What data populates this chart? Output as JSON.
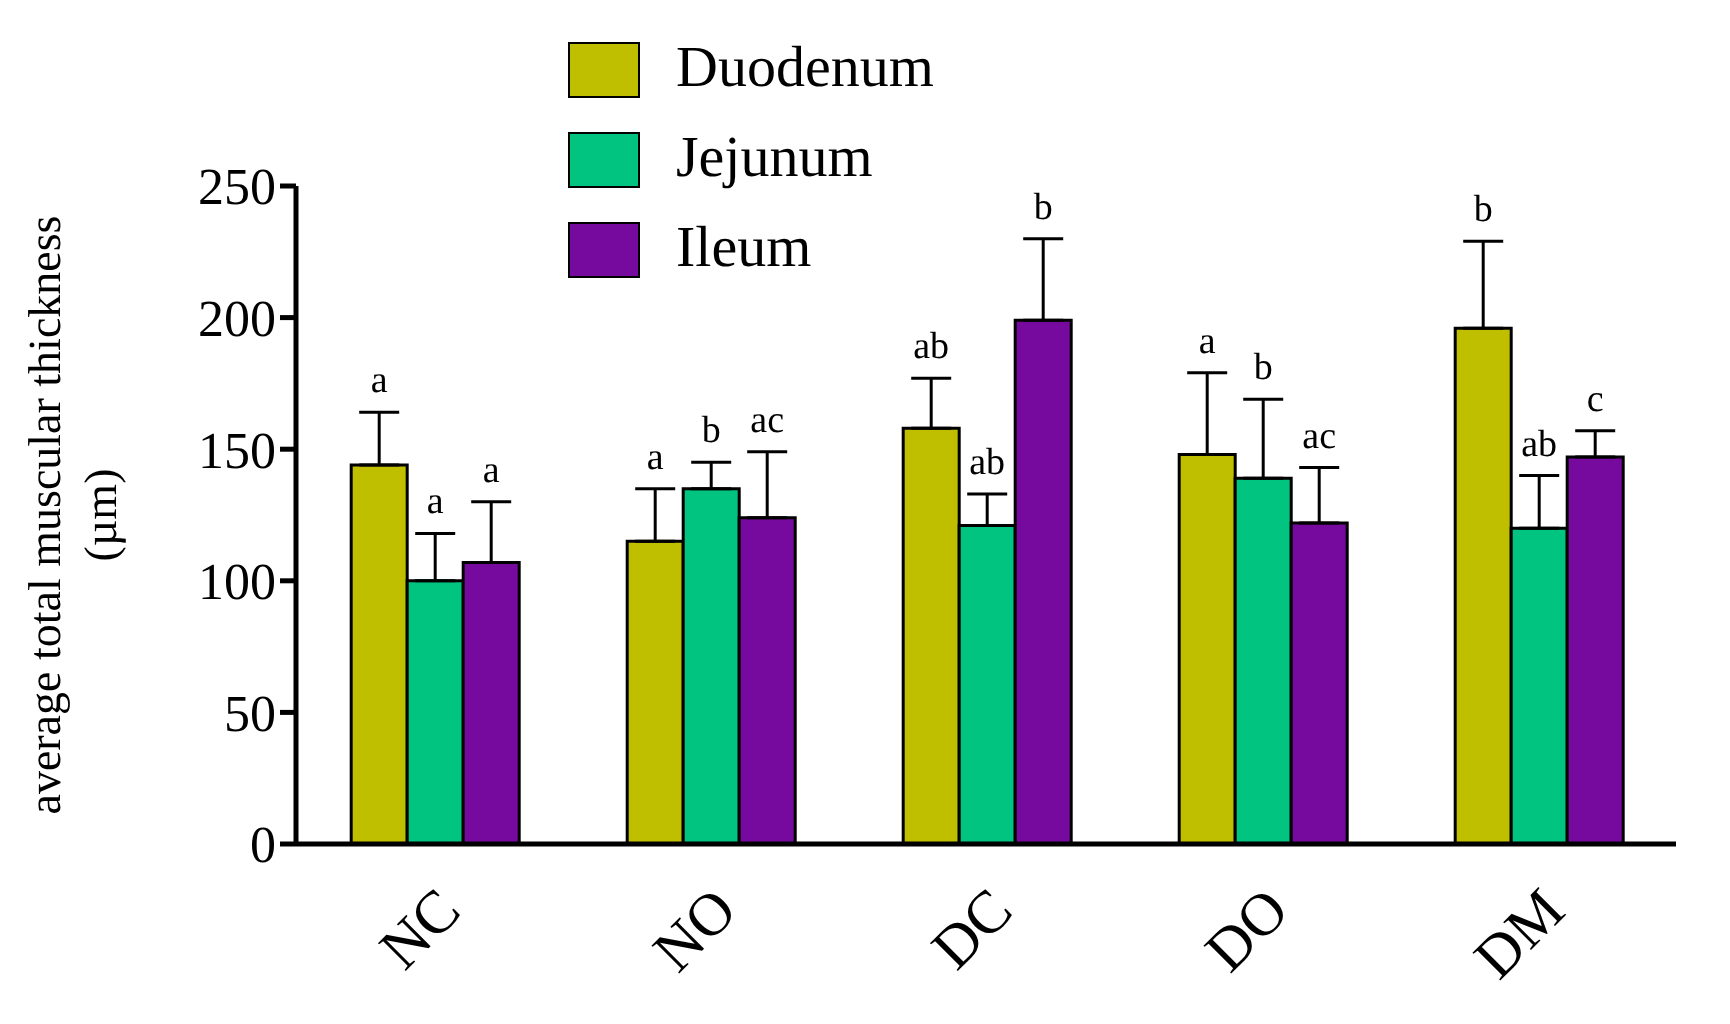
{
  "chart_data": {
    "type": "bar",
    "ylabel": "average total muscular thickness (µm)",
    "categories": [
      "NC",
      "NO",
      "DC",
      "DO",
      "DM"
    ],
    "series": [
      {
        "name": "Duodenum",
        "color": "#bfbf00",
        "values": [
          144,
          115,
          158,
          148,
          196
        ],
        "errors": [
          [
            144,
            164
          ],
          [
            115,
            135
          ],
          [
            158,
            177
          ],
          [
            148,
            179
          ],
          [
            196,
            229
          ]
        ],
        "value_labels": [
          "a",
          "a",
          "ab",
          "a",
          "b"
        ]
      },
      {
        "name": "Jejunum",
        "color": "#00c47f",
        "values": [
          100,
          135,
          121,
          139,
          120
        ],
        "errors": [
          [
            100,
            118
          ],
          [
            135,
            145
          ],
          [
            121,
            133
          ],
          [
            139,
            169
          ],
          [
            120,
            140
          ]
        ],
        "value_labels": [
          "a",
          "b",
          "ab",
          "b",
          "ab"
        ]
      },
      {
        "name": "Ileum",
        "color": "#770a9e",
        "values": [
          107,
          124,
          199,
          122,
          147
        ],
        "errors": [
          [
            107,
            130
          ],
          [
            124,
            149
          ],
          [
            199,
            230
          ],
          [
            122,
            143
          ],
          [
            147,
            157
          ]
        ],
        "value_labels": [
          "a",
          "ac",
          "b",
          "ac",
          "c"
        ]
      }
    ],
    "ylim": [
      0,
      250
    ],
    "yticks": [
      0,
      50,
      100,
      150,
      200,
      250
    ],
    "grid": false,
    "legend": "top"
  }
}
